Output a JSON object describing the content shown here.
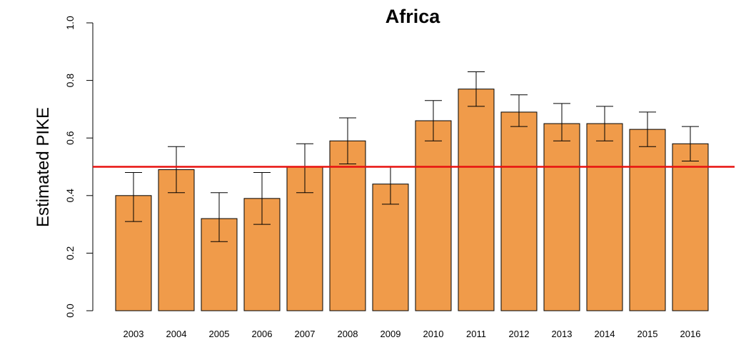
{
  "chart_data": {
    "type": "bar",
    "title": "Africa",
    "xlabel": "",
    "ylabel": "Estimated PIKE",
    "ylim": [
      0,
      1
    ],
    "yticks": [
      "0.0",
      "0.2",
      "0.4",
      "0.6",
      "0.8",
      "1.0"
    ],
    "categories": [
      "2003",
      "2004",
      "2005",
      "2006",
      "2007",
      "2008",
      "2009",
      "2010",
      "2011",
      "2012",
      "2013",
      "2014",
      "2015",
      "2016"
    ],
    "values": [
      0.4,
      0.49,
      0.32,
      0.39,
      0.5,
      0.59,
      0.44,
      0.66,
      0.77,
      0.69,
      0.65,
      0.65,
      0.63,
      0.58
    ],
    "error_low": [
      0.31,
      0.41,
      0.24,
      0.3,
      0.41,
      0.51,
      0.37,
      0.59,
      0.71,
      0.64,
      0.59,
      0.59,
      0.57,
      0.52
    ],
    "error_high": [
      0.48,
      0.57,
      0.41,
      0.48,
      0.58,
      0.67,
      0.5,
      0.73,
      0.83,
      0.75,
      0.72,
      0.71,
      0.69,
      0.64
    ],
    "reference_line": 0.5,
    "grid": false,
    "legend": "none",
    "colors": {
      "bar_fill": "#F09B4A",
      "bar_stroke": "#000000",
      "reference_line": "#E8100E",
      "error_bar": "#000000"
    }
  }
}
